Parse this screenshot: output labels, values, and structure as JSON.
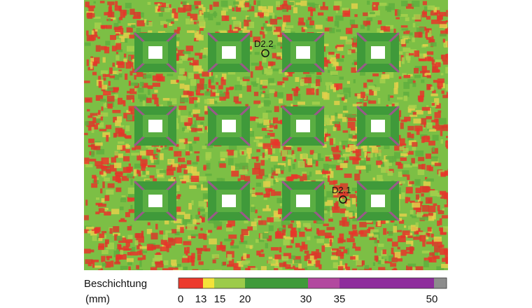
{
  "map": {
    "points": [
      {
        "label": "D2.2"
      },
      {
        "label": "D2.1"
      }
    ]
  },
  "legend": {
    "title": "Beschichtung",
    "unit": "(mm)",
    "ticks": [
      "0",
      "13",
      "15",
      "20",
      "30",
      "35",
      "50"
    ],
    "colors": [
      "#ec3a2c",
      "#f4e23a",
      "#9ccb4a",
      "#3f9a3a",
      "#b2489f",
      "#8e2c9c",
      "#8c8c8c"
    ]
  }
}
